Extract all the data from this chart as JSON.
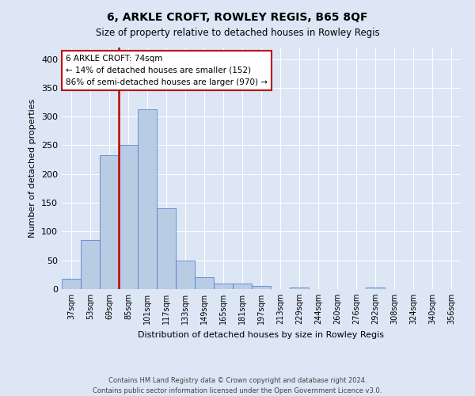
{
  "title": "6, ARKLE CROFT, ROWLEY REGIS, B65 8QF",
  "subtitle": "Size of property relative to detached houses in Rowley Regis",
  "xlabel": "Distribution of detached houses by size in Rowley Regis",
  "ylabel": "Number of detached properties",
  "categories": [
    "37sqm",
    "53sqm",
    "69sqm",
    "85sqm",
    "101sqm",
    "117sqm",
    "133sqm",
    "149sqm",
    "165sqm",
    "181sqm",
    "197sqm",
    "213sqm",
    "229sqm",
    "244sqm",
    "260sqm",
    "276sqm",
    "292sqm",
    "308sqm",
    "324sqm",
    "340sqm",
    "356sqm"
  ],
  "bar_heights": [
    18,
    85,
    233,
    250,
    313,
    141,
    50,
    20,
    9,
    10,
    5,
    0,
    3,
    0,
    0,
    0,
    3,
    0,
    0,
    0,
    0
  ],
  "bar_color": "#b8cce4",
  "bar_edge_color": "#4472c4",
  "vline_color": "#c00000",
  "annotation_text": "6 ARKLE CROFT: 74sqm\n← 14% of detached houses are smaller (152)\n86% of semi-detached houses are larger (970) →",
  "annotation_box_color": "#ffffff",
  "annotation_box_edge": "#c00000",
  "ylim": [
    0,
    420
  ],
  "yticks": [
    0,
    50,
    100,
    150,
    200,
    250,
    300,
    350,
    400
  ],
  "footer1": "Contains HM Land Registry data © Crown copyright and database right 2024.",
  "footer2": "Contains public sector information licensed under the Open Government Licence v3.0.",
  "bg_color": "#dce6f5",
  "grid_color": "#ffffff"
}
